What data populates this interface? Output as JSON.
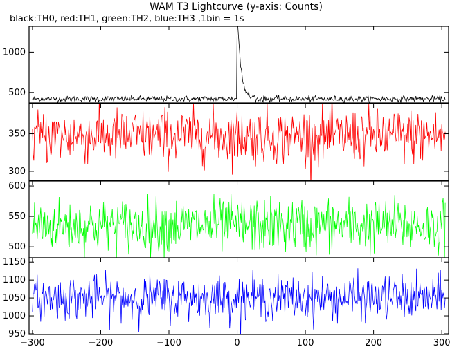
{
  "chart_data": {
    "type": "line",
    "title": "WAM T3 Lightcurve (y-axis: Counts)",
    "subtitle": "black:TH0, red:TH1, green:TH2, blue:TH3 ,1bin = 1s",
    "xlim": [
      -305,
      310
    ],
    "x_ticks": [
      -300,
      -200,
      -100,
      0,
      100,
      200,
      300
    ],
    "x_range": [
      -300,
      305
    ],
    "bin_seconds": 1,
    "series": [
      {
        "color": "#000000",
        "ylim": [
          370,
          1320
        ],
        "y_ticks": [
          500,
          1000
        ],
        "baseline": 420,
        "noise": 18,
        "burst": {
          "start": 0,
          "peak_time": 1,
          "peak": 1320,
          "decay": 5.5,
          "tail_end": 30
        }
      },
      {
        "color": "#ff0000",
        "ylim": [
          288,
          390
        ],
        "y_ticks": [
          300,
          350
        ],
        "baseline": 347,
        "noise": 18
      },
      {
        "color": "#00ff00",
        "ylim": [
          482,
          608
        ],
        "y_ticks": [
          500,
          550,
          600
        ],
        "baseline": 535,
        "noise": 22
      },
      {
        "color": "#0000ff",
        "ylim": [
          948,
          1162
        ],
        "y_ticks": [
          950,
          1000,
          1050,
          1100,
          1150
        ],
        "baseline": 1050,
        "noise": 30
      }
    ]
  }
}
